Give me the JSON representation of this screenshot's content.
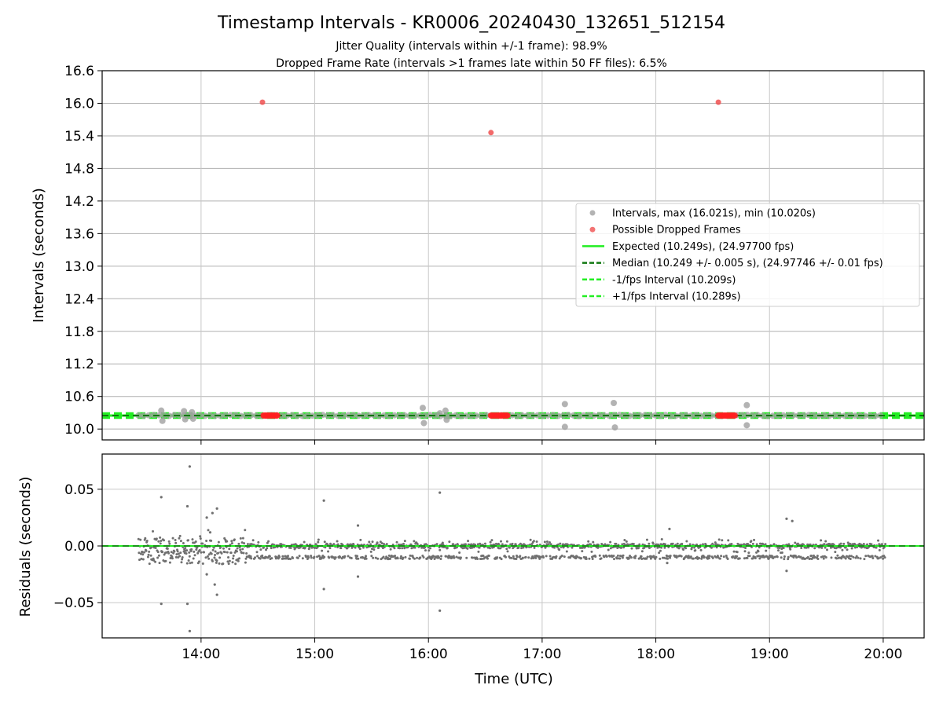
{
  "chart_data": [
    {
      "type": "scatter",
      "title": "Timestamp Intervals - KR0006_20240430_132651_512154",
      "subtitle_lines": [
        "Jitter Quality (intervals within +/-1 frame): 98.9%",
        "Dropped Frame Rate (intervals >1 frames late within 50 FF files): 6.5%"
      ],
      "xlabel": "",
      "ylabel": "Intervals (seconds)",
      "xlim_hours": [
        13.13,
        20.36
      ],
      "ylim": [
        9.8,
        16.6
      ],
      "y_ticks": [
        "10.0",
        "10.6",
        "11.2",
        "11.8",
        "12.4",
        "13.0",
        "13.6",
        "14.2",
        "14.8",
        "15.4",
        "16.0",
        "16.6"
      ],
      "grid": true,
      "legend_position": "center-right",
      "legend": [
        {
          "label": "Intervals, max (16.021s), min (10.020s)",
          "kind": "marker",
          "color": "#a0a0a0"
        },
        {
          "label": "Possible Dropped Frames",
          "kind": "marker",
          "color": "#f05050"
        },
        {
          "label": "Expected (10.249s), (24.97700 fps)",
          "kind": "line",
          "color": "#22ee22",
          "dash": "solid"
        },
        {
          "label": "Median (10.249 +/- 0.005 s), (24.97746 +/- 0.01 fps)",
          "kind": "line",
          "color": "#117711",
          "dash": "dashed"
        },
        {
          "label": "-1/fps Interval (10.209s)",
          "kind": "line",
          "color": "#22ee22",
          "dash": "dashed"
        },
        {
          "label": "+1/fps Interval (10.289s)",
          "kind": "line",
          "color": "#22ee22",
          "dash": "dashed"
        }
      ],
      "reference_lines": {
        "expected": 10.249,
        "median": 10.249,
        "minus_fps": 10.209,
        "plus_fps": 10.289
      },
      "series": [
        {
          "name": "Intervals",
          "color": "#a0a0a0",
          "range_hours": [
            13.45,
            20.02
          ],
          "baseline_value": 10.249,
          "outliers": [
            {
              "x": 13.65,
              "y": 10.34
            },
            {
              "x": 13.66,
              "y": 10.15
            },
            {
              "x": 13.85,
              "y": 10.33
            },
            {
              "x": 13.86,
              "y": 10.18
            },
            {
              "x": 13.92,
              "y": 10.31
            },
            {
              "x": 13.93,
              "y": 10.19
            },
            {
              "x": 15.95,
              "y": 10.39
            },
            {
              "x": 15.96,
              "y": 10.11
            },
            {
              "x": 16.1,
              "y": 10.29
            },
            {
              "x": 16.15,
              "y": 10.34
            },
            {
              "x": 16.16,
              "y": 10.17
            },
            {
              "x": 17.2,
              "y": 10.46
            },
            {
              "x": 17.2,
              "y": 10.04
            },
            {
              "x": 17.63,
              "y": 10.48
            },
            {
              "x": 17.64,
              "y": 10.03
            },
            {
              "x": 18.8,
              "y": 10.44
            },
            {
              "x": 18.8,
              "y": 10.07
            }
          ]
        },
        {
          "name": "Possible Dropped Frames",
          "color": "#f05050",
          "points": [
            {
              "x": 14.54,
              "y": 16.02
            },
            {
              "x": 16.55,
              "y": 15.46
            },
            {
              "x": 18.55,
              "y": 16.02
            }
          ],
          "clusters_at_baseline_hours": [
            [
              14.55,
              14.68
            ],
            [
              16.55,
              16.7
            ],
            [
              18.55,
              18.7
            ]
          ]
        }
      ]
    },
    {
      "type": "scatter",
      "xlabel": "Time (UTC)",
      "ylabel": "Residuals (seconds)",
      "xlim_hours": [
        13.13,
        20.36
      ],
      "ylim": [
        -0.081,
        0.081
      ],
      "y_ticks": [
        "−0.05",
        "0.00",
        "0.05"
      ],
      "x_ticks": [
        "14:00",
        "15:00",
        "16:00",
        "17:00",
        "18:00",
        "19:00",
        "20:00"
      ],
      "grid": true,
      "zero_line_color": "#117711",
      "series": [
        {
          "name": "Residuals",
          "color": "#707070",
          "range_hours": [
            13.45,
            20.02
          ],
          "bands": [
            0.0,
            -0.01
          ],
          "outliers": [
            {
              "x": 13.9,
              "y": 0.07
            },
            {
              "x": 13.65,
              "y": 0.043
            },
            {
              "x": 13.88,
              "y": 0.035
            },
            {
              "x": 14.14,
              "y": 0.033
            },
            {
              "x": 14.1,
              "y": 0.029
            },
            {
              "x": 14.05,
              "y": 0.025
            },
            {
              "x": 14.08,
              "y": 0.012
            },
            {
              "x": 15.08,
              "y": 0.04
            },
            {
              "x": 15.38,
              "y": 0.018
            },
            {
              "x": 16.1,
              "y": 0.047
            },
            {
              "x": 18.12,
              "y": 0.015
            },
            {
              "x": 19.15,
              "y": 0.024
            },
            {
              "x": 19.2,
              "y": 0.022
            },
            {
              "x": 13.65,
              "y": -0.051
            },
            {
              "x": 13.88,
              "y": -0.051
            },
            {
              "x": 13.9,
              "y": -0.075
            },
            {
              "x": 14.12,
              "y": -0.034
            },
            {
              "x": 14.14,
              "y": -0.043
            },
            {
              "x": 14.05,
              "y": -0.025
            },
            {
              "x": 15.08,
              "y": -0.038
            },
            {
              "x": 15.38,
              "y": -0.027
            },
            {
              "x": 16.1,
              "y": -0.057
            },
            {
              "x": 19.15,
              "y": -0.022
            },
            {
              "x": 18.1,
              "y": -0.015
            }
          ]
        }
      ]
    }
  ]
}
